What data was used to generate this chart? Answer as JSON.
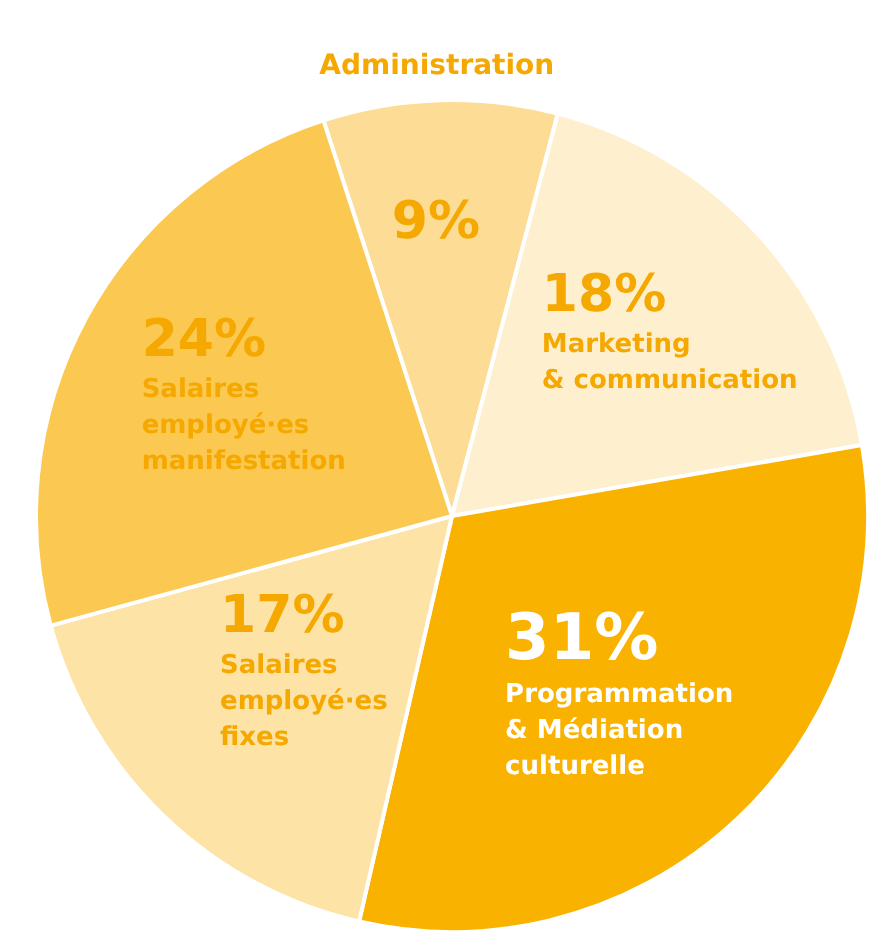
{
  "chart_data": {
    "type": "pie",
    "categories": [
      "Administration",
      "Marketing & communication",
      "Programmation & Médiation culturelle",
      "Salaires employé·es fixes",
      "Salaires employé·es manifestation"
    ],
    "values": [
      9,
      18,
      31,
      17,
      24
    ],
    "value_labels": [
      "9%",
      "18%",
      "31%",
      "17%",
      "24%"
    ],
    "colors": [
      "#fddc95",
      "#fef0cf",
      "#f9b200",
      "#fde3a6",
      "#fbc851"
    ]
  }
}
